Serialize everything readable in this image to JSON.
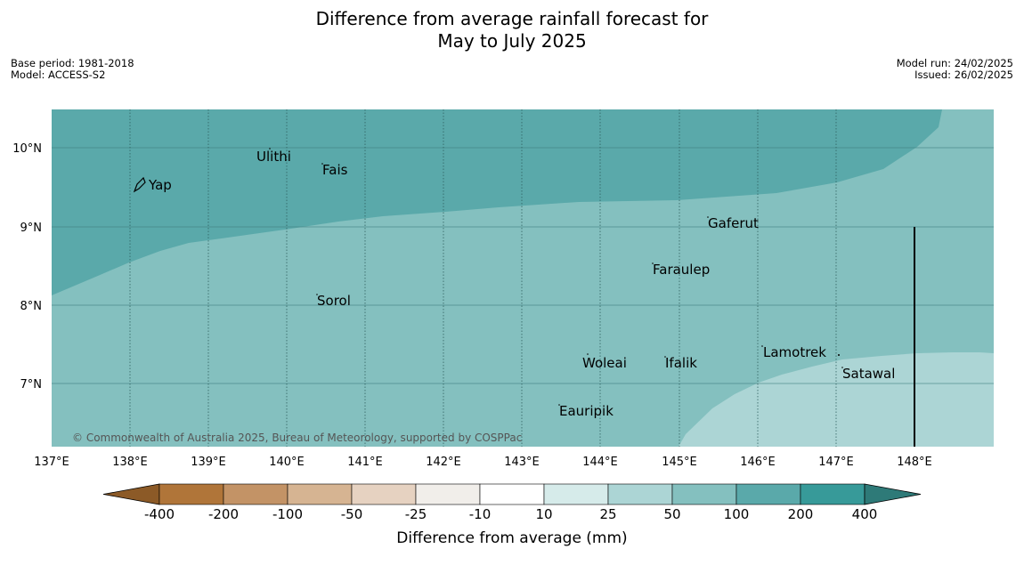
{
  "header": {
    "title_line1": "Difference from average rainfall forecast for",
    "title_line2": "May to July 2025",
    "base_period": "Base period: 1981-2018",
    "model": "Model: ACCESS-S2",
    "model_run": "Model run: 24/02/2025",
    "issued": "Issued: 26/02/2025"
  },
  "map": {
    "lon_ticks": [
      "137°E",
      "138°E",
      "139°E",
      "140°E",
      "141°E",
      "142°E",
      "143°E",
      "144°E",
      "145°E",
      "146°E",
      "147°E",
      "148°E"
    ],
    "lat_ticks": [
      "10°N",
      "9°N",
      "8°N",
      "7°N"
    ],
    "places": [
      {
        "name": "Yap"
      },
      {
        "name": "Ulithi"
      },
      {
        "name": "Fais"
      },
      {
        "name": "Gaferut"
      },
      {
        "name": "Faraulep"
      },
      {
        "name": "Sorol"
      },
      {
        "name": "Lamotrek"
      },
      {
        "name": "Woleai"
      },
      {
        "name": "Ifalik"
      },
      {
        "name": "Satawal"
      },
      {
        "name": "Eauripik"
      }
    ],
    "copyright": "© Commonwealth of Australia 2025, Bureau of Meteorology, supported by COSPPac",
    "fill_colors": {
      "band_100_200": "#5aa9aa",
      "band_50_100": "#84c0bf",
      "band_25_50": "#acd5d5"
    }
  },
  "colorbar": {
    "title": "Difference from average (mm)",
    "boundaries": [
      "-400",
      "-200",
      "-100",
      "-50",
      "-25",
      "-10",
      "10",
      "25",
      "50",
      "100",
      "200",
      "400"
    ],
    "colors": [
      "#8c5a27",
      "#b07539",
      "#c39366",
      "#d6b492",
      "#e6d2c1",
      "#f1eeea",
      "#ffffff",
      "#d6ebea",
      "#acd5d5",
      "#84c0bf",
      "#5aa9aa",
      "#379a99",
      "#2e7a78"
    ]
  }
}
